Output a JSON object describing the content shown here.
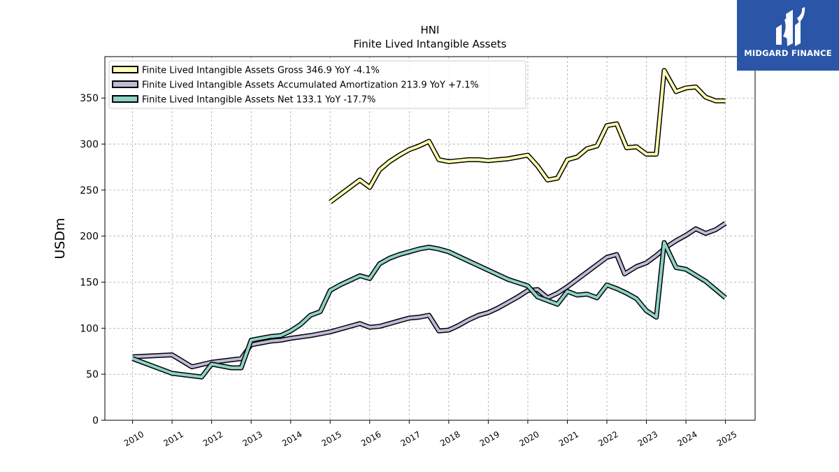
{
  "logo": {
    "text": "MIDGARD FINANCE",
    "color": "#2b56a8"
  },
  "chart_data": {
    "type": "line",
    "title": "HNI",
    "subtitle": "Finite Lived Intangible Assets",
    "ylabel": "USDm",
    "xlabel": "",
    "ylim": [
      0,
      395
    ],
    "xlim": [
      2009.3,
      2025.75
    ],
    "yticks": [
      0,
      50,
      100,
      150,
      200,
      250,
      300,
      350
    ],
    "xticks": [
      2010,
      2011,
      2012,
      2013,
      2014,
      2015,
      2016,
      2017,
      2018,
      2019,
      2020,
      2021,
      2022,
      2023,
      2024,
      2025
    ],
    "grid": true,
    "legend_position": "top-left",
    "series": [
      {
        "name": "Finite Lived Intangible Assets Gross  346.9 YoY -4.1%",
        "color": "#ffffb3",
        "points": [
          [
            2015.0,
            237
          ],
          [
            2015.75,
            261
          ],
          [
            2016.0,
            253
          ],
          [
            2016.25,
            272
          ],
          [
            2016.5,
            281
          ],
          [
            2016.75,
            288
          ],
          [
            2017.0,
            294
          ],
          [
            2017.25,
            298
          ],
          [
            2017.5,
            303
          ],
          [
            2017.75,
            283
          ],
          [
            2018.0,
            281
          ],
          [
            2018.25,
            282
          ],
          [
            2018.5,
            283
          ],
          [
            2018.75,
            283
          ],
          [
            2019.0,
            282
          ],
          [
            2019.25,
            283
          ],
          [
            2019.5,
            284
          ],
          [
            2019.75,
            286
          ],
          [
            2020.0,
            288
          ],
          [
            2020.25,
            276
          ],
          [
            2020.5,
            261
          ],
          [
            2020.75,
            263
          ],
          [
            2021.0,
            283
          ],
          [
            2021.25,
            286
          ],
          [
            2021.5,
            295
          ],
          [
            2021.75,
            298
          ],
          [
            2022.0,
            320
          ],
          [
            2022.25,
            322
          ],
          [
            2022.5,
            296
          ],
          [
            2022.75,
            297
          ],
          [
            2023.0,
            289
          ],
          [
            2023.25,
            289
          ],
          [
            2023.45,
            380
          ],
          [
            2023.75,
            357
          ],
          [
            2024.0,
            361
          ],
          [
            2024.25,
            362
          ],
          [
            2024.5,
            351
          ],
          [
            2024.75,
            347
          ],
          [
            2025.0,
            347
          ]
        ]
      },
      {
        "name": "Finite Lived Intangible Assets Accumulated Amortization  213.9 YoY +7.1%",
        "color": "#bebada",
        "points": [
          [
            2010.0,
            69
          ],
          [
            2011.0,
            71
          ],
          [
            2011.5,
            58
          ],
          [
            2012.0,
            63
          ],
          [
            2012.75,
            67
          ],
          [
            2013.0,
            82
          ],
          [
            2013.25,
            84
          ],
          [
            2013.5,
            86
          ],
          [
            2013.75,
            87
          ],
          [
            2014.0,
            89
          ],
          [
            2014.5,
            92
          ],
          [
            2015.0,
            96
          ],
          [
            2015.5,
            102
          ],
          [
            2015.75,
            105
          ],
          [
            2016.0,
            101
          ],
          [
            2016.25,
            102
          ],
          [
            2016.5,
            105
          ],
          [
            2016.75,
            108
          ],
          [
            2017.0,
            111
          ],
          [
            2017.25,
            112
          ],
          [
            2017.5,
            114
          ],
          [
            2017.75,
            97
          ],
          [
            2018.0,
            98
          ],
          [
            2018.25,
            103
          ],
          [
            2018.5,
            109
          ],
          [
            2018.75,
            114
          ],
          [
            2019.0,
            117
          ],
          [
            2019.25,
            122
          ],
          [
            2019.5,
            128
          ],
          [
            2019.75,
            134
          ],
          [
            2020.0,
            141
          ],
          [
            2020.25,
            142
          ],
          [
            2020.5,
            133
          ],
          [
            2020.75,
            138
          ],
          [
            2021.0,
            145
          ],
          [
            2021.25,
            153
          ],
          [
            2021.5,
            161
          ],
          [
            2021.75,
            169
          ],
          [
            2022.0,
            177
          ],
          [
            2022.25,
            180
          ],
          [
            2022.45,
            159
          ],
          [
            2022.75,
            167
          ],
          [
            2023.0,
            171
          ],
          [
            2023.25,
            179
          ],
          [
            2023.5,
            188
          ],
          [
            2023.75,
            195
          ],
          [
            2024.0,
            201
          ],
          [
            2024.25,
            208
          ],
          [
            2024.5,
            203
          ],
          [
            2024.75,
            207
          ],
          [
            2025.0,
            214
          ]
        ]
      },
      {
        "name": "Finite Lived Intangible Assets Net  133.1 YoY -17.7%",
        "color": "#8dd3c7",
        "points": [
          [
            2010.0,
            67
          ],
          [
            2011.0,
            51
          ],
          [
            2011.75,
            47
          ],
          [
            2012.0,
            61
          ],
          [
            2012.5,
            57
          ],
          [
            2012.75,
            57
          ],
          [
            2013.0,
            87
          ],
          [
            2013.25,
            89
          ],
          [
            2013.5,
            91
          ],
          [
            2013.75,
            92
          ],
          [
            2014.0,
            97
          ],
          [
            2014.25,
            104
          ],
          [
            2014.5,
            114
          ],
          [
            2014.75,
            118
          ],
          [
            2015.0,
            141
          ],
          [
            2015.25,
            147
          ],
          [
            2015.5,
            152
          ],
          [
            2015.75,
            157
          ],
          [
            2016.0,
            154
          ],
          [
            2016.25,
            170
          ],
          [
            2016.5,
            176
          ],
          [
            2016.75,
            180
          ],
          [
            2017.0,
            183
          ],
          [
            2017.25,
            186
          ],
          [
            2017.5,
            188
          ],
          [
            2017.75,
            186
          ],
          [
            2018.0,
            183
          ],
          [
            2018.5,
            173
          ],
          [
            2019.0,
            163
          ],
          [
            2019.5,
            153
          ],
          [
            2020.0,
            146
          ],
          [
            2020.25,
            134
          ],
          [
            2020.5,
            130
          ],
          [
            2020.75,
            126
          ],
          [
            2021.0,
            140
          ],
          [
            2021.25,
            136
          ],
          [
            2021.5,
            137
          ],
          [
            2021.75,
            133
          ],
          [
            2022.0,
            147
          ],
          [
            2022.25,
            143
          ],
          [
            2022.5,
            138
          ],
          [
            2022.75,
            132
          ],
          [
            2023.0,
            119
          ],
          [
            2023.25,
            112
          ],
          [
            2023.45,
            193
          ],
          [
            2023.75,
            166
          ],
          [
            2024.0,
            164
          ],
          [
            2024.5,
            151
          ],
          [
            2025.0,
            133
          ]
        ]
      }
    ]
  }
}
